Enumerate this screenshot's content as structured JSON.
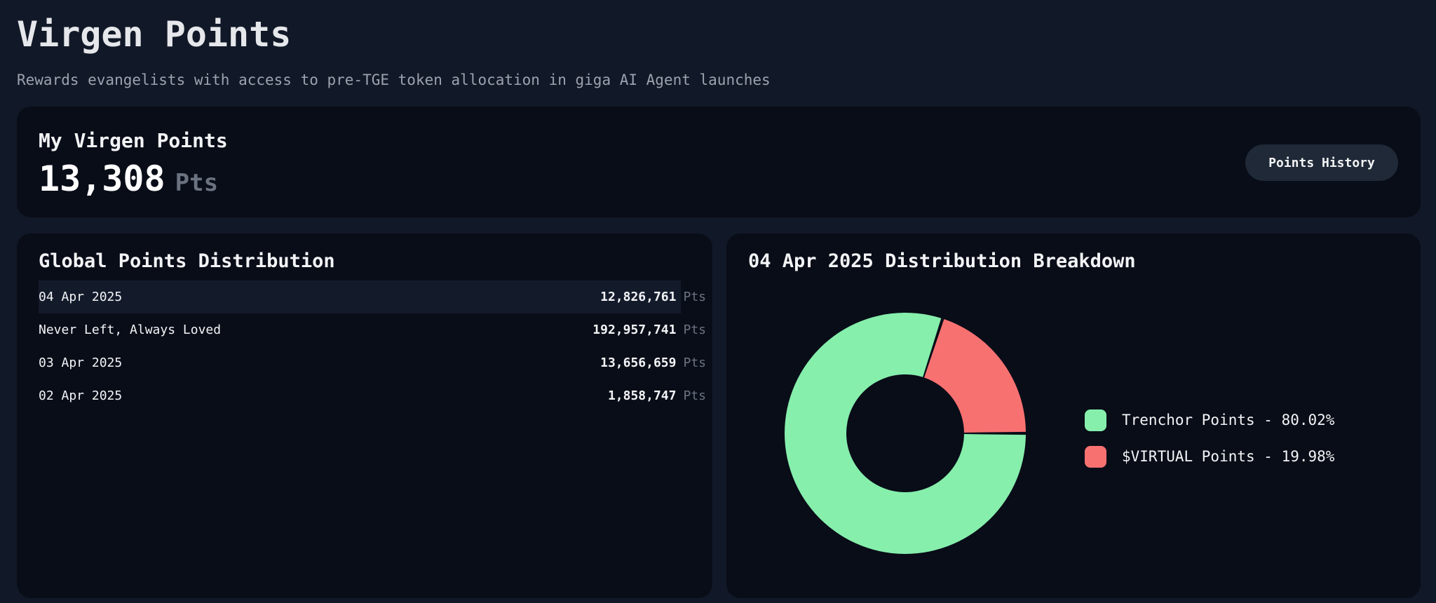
{
  "header": {
    "title": "Virgen Points",
    "subtitle": "Rewards evangelists with access to pre-TGE token allocation in giga AI Agent launches"
  },
  "my_points": {
    "label": "My Virgen Points",
    "value": "13,308",
    "unit": "Pts",
    "history_button": "Points History"
  },
  "global": {
    "title": "Global Points Distribution",
    "rows": [
      {
        "label": "04 Apr 2025",
        "value": "12,826,761",
        "unit": "Pts"
      },
      {
        "label": "Never Left, Always Loved",
        "value": "192,957,741",
        "unit": "Pts"
      },
      {
        "label": "03 Apr 2025",
        "value": "13,656,659",
        "unit": "Pts"
      },
      {
        "label": "02 Apr 2025",
        "value": "1,858,747",
        "unit": "Pts"
      }
    ]
  },
  "breakdown": {
    "title": "04 Apr 2025 Distribution Breakdown",
    "legend": [
      {
        "label": "Trenchor Points - 80.02%",
        "color": "#86efac"
      },
      {
        "label": "$VIRTUAL Points - 19.98%",
        "color": "#f87171"
      }
    ]
  },
  "chart_data": {
    "type": "pie",
    "categories": [
      "Trenchor Points",
      "$VIRTUAL Points"
    ],
    "values": [
      80.02,
      19.98
    ],
    "colors": [
      "#86efac",
      "#f87171"
    ],
    "title": "04 Apr 2025 Distribution Breakdown"
  }
}
